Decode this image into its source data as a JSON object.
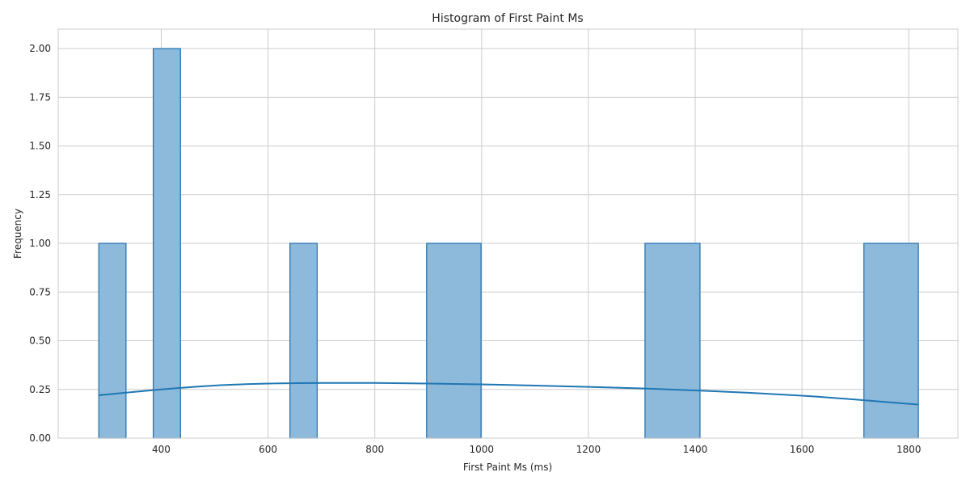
{
  "chart_data": {
    "type": "bar",
    "title": "Histogram of First Paint Ms",
    "xlabel": "First Paint Ms (ms)",
    "ylabel": "Frequency",
    "xlim": [
      207,
      1892
    ],
    "ylim": [
      0,
      2.1
    ],
    "xticks": [
      400,
      600,
      800,
      1000,
      1200,
      1400,
      1600,
      1800
    ],
    "yticks": [
      0.0,
      0.25,
      0.5,
      0.75,
      1.0,
      1.25,
      1.5,
      1.75,
      2.0
    ],
    "xtick_labels": [
      "400",
      "600",
      "800",
      "1000",
      "1200",
      "1400",
      "1600",
      "1800"
    ],
    "ytick_labels": [
      "0.00",
      "0.25",
      "0.50",
      "0.75",
      "1.00",
      "1.25",
      "1.50",
      "1.75",
      "2.00"
    ],
    "bins": [
      {
        "x0": 283,
        "x1": 334,
        "value": 1
      },
      {
        "x0": 385,
        "x1": 436,
        "value": 2
      },
      {
        "x0": 641,
        "x1": 692,
        "value": 1
      },
      {
        "x0": 897,
        "x1": 999,
        "value": 1
      },
      {
        "x0": 1306,
        "x1": 1409,
        "value": 1
      },
      {
        "x0": 1716,
        "x1": 1818,
        "value": 1
      }
    ],
    "kde": {
      "x": [
        283,
        400,
        500,
        600,
        700,
        800,
        900,
        1000,
        1100,
        1200,
        1300,
        1400,
        1500,
        1600,
        1700,
        1818
      ],
      "y": [
        0.22,
        0.25,
        0.27,
        0.28,
        0.283,
        0.283,
        0.28,
        0.276,
        0.27,
        0.263,
        0.255,
        0.245,
        0.233,
        0.218,
        0.198,
        0.172
      ]
    },
    "grid": true,
    "colors": {
      "bar_fill": "#8db9db",
      "bar_edge": "#1f6fae",
      "kde_line": "#1f77b4",
      "grid": "#cccccc",
      "axis_border": "#cccccc"
    }
  }
}
